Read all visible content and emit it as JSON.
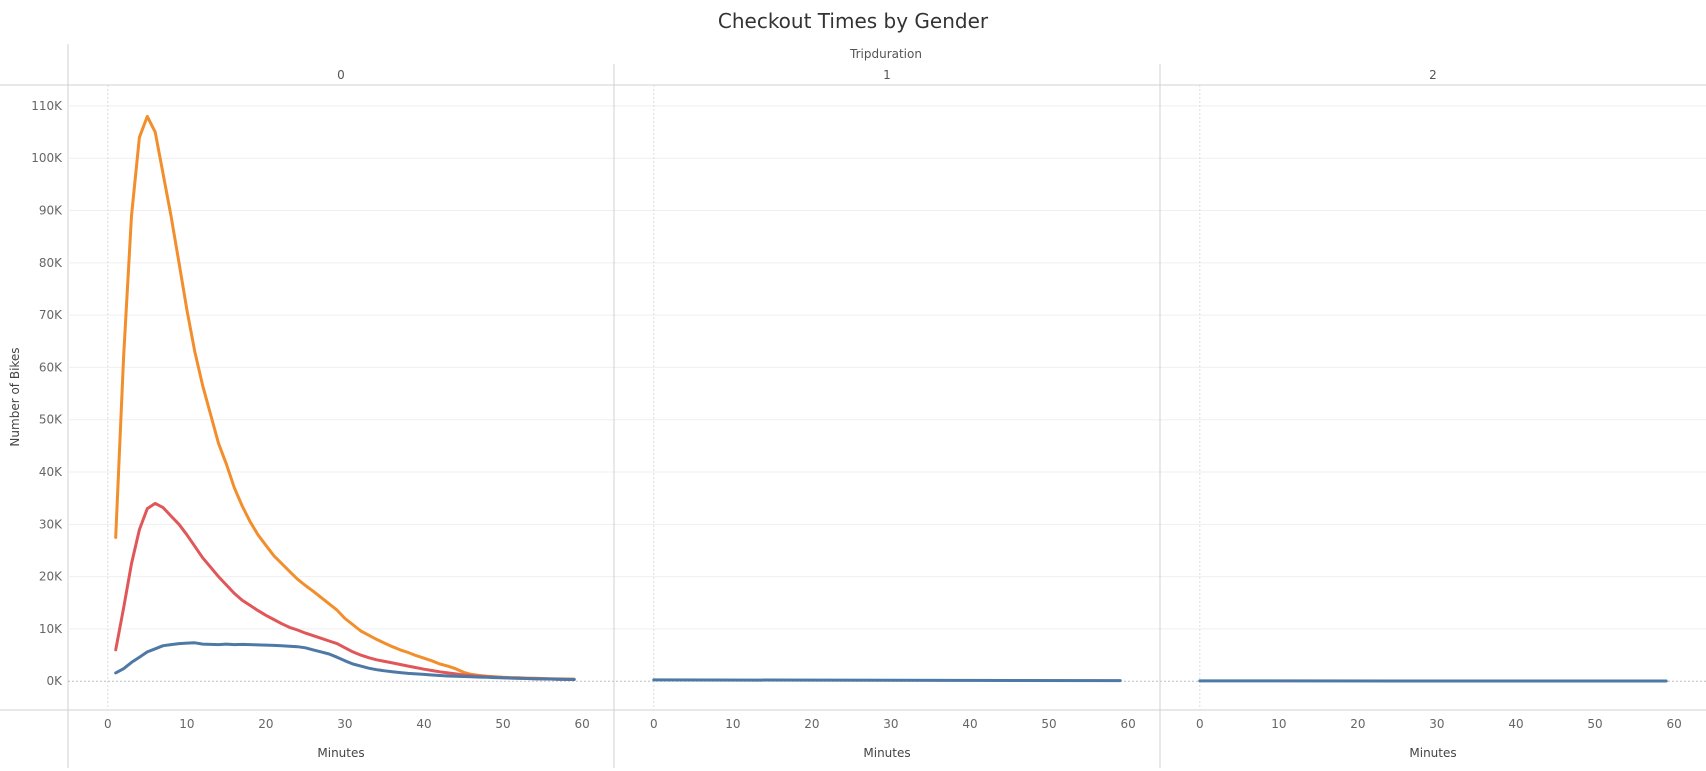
{
  "chart_data": {
    "type": "line",
    "title": "Checkout Times by Gender",
    "column_header": "Tripduration",
    "panels": [
      {
        "label": "0",
        "series": [
          {
            "color": "#f28e2b",
            "x": [
              1,
              2,
              3,
              4,
              5,
              6,
              7,
              8,
              9,
              10,
              11,
              12,
              13,
              14,
              15,
              16,
              17,
              18,
              19,
              20,
              21,
              22,
              23,
              24,
              25,
              26,
              27,
              28,
              29,
              30,
              31,
              32,
              33,
              34,
              35,
              36,
              37,
              38,
              39,
              40,
              41,
              42,
              43,
              44,
              45,
              46,
              47,
              48,
              49,
              50,
              51,
              52,
              53,
              54,
              55,
              56,
              57,
              58,
              59
            ],
            "values": [
              27500,
              62000,
              89000,
              104000,
              108000,
              105000,
              97000,
              89000,
              80000,
              71000,
              63000,
              56500,
              51000,
              45500,
              41500,
              37000,
              33500,
              30500,
              28000,
              26000,
              24000,
              22500,
              21000,
              19500,
              18300,
              17200,
              16000,
              14800,
              13600,
              12000,
              10800,
              9600,
              8800,
              8000,
              7300,
              6600,
              6000,
              5500,
              4900,
              4400,
              3900,
              3300,
              2900,
              2400,
              1700,
              1300,
              1100,
              950,
              850,
              750,
              700,
              650,
              600,
              560,
              520,
              480,
              450,
              420,
              400
            ]
          },
          {
            "color": "#e15759",
            "x": [
              1,
              2,
              3,
              4,
              5,
              6,
              7,
              8,
              9,
              10,
              11,
              12,
              13,
              14,
              15,
              16,
              17,
              18,
              19,
              20,
              21,
              22,
              23,
              24,
              25,
              26,
              27,
              28,
              29,
              30,
              31,
              32,
              33,
              34,
              35,
              36,
              37,
              38,
              39,
              40,
              41,
              42,
              43,
              44,
              45,
              46,
              47,
              48,
              49,
              50,
              51,
              52,
              53,
              54,
              55,
              56,
              57,
              58,
              59
            ],
            "values": [
              6000,
              14000,
              22500,
              29000,
              33000,
              34000,
              33200,
              31600,
              30000,
              28000,
              25800,
              23600,
              21800,
              20000,
              18400,
              16800,
              15500,
              14500,
              13500,
              12600,
              11800,
              11000,
              10300,
              9800,
              9200,
              8700,
              8200,
              7700,
              7200,
              6400,
              5600,
              5000,
              4500,
              4100,
              3800,
              3500,
              3200,
              2900,
              2600,
              2300,
              2050,
              1800,
              1600,
              1400,
              1200,
              1050,
              950,
              850,
              750,
              680,
              620,
              560,
              520,
              480,
              450,
              420,
              390,
              360,
              340
            ]
          },
          {
            "color": "#4e79a7",
            "x": [
              1,
              2,
              3,
              4,
              5,
              6,
              7,
              8,
              9,
              10,
              11,
              12,
              13,
              14,
              15,
              16,
              17,
              18,
              19,
              20,
              21,
              22,
              23,
              24,
              25,
              26,
              27,
              28,
              29,
              30,
              31,
              32,
              33,
              34,
              35,
              36,
              37,
              38,
              39,
              40,
              41,
              42,
              43,
              44,
              45,
              46,
              47,
              48,
              49,
              50,
              51,
              52,
              53,
              54,
              55,
              56,
              57,
              58,
              59
            ],
            "values": [
              1600,
              2400,
              3600,
              4600,
              5600,
              6200,
              6800,
              7000,
              7200,
              7300,
              7350,
              7100,
              7050,
              7000,
              7100,
              7000,
              7050,
              7000,
              6950,
              6900,
              6850,
              6800,
              6700,
              6600,
              6400,
              6000,
              5600,
              5200,
              4600,
              3900,
              3300,
              2900,
              2500,
              2200,
              2000,
              1800,
              1650,
              1500,
              1400,
              1300,
              1200,
              1100,
              1000,
              950,
              900,
              850,
              800,
              750,
              700,
              650,
              600,
              560,
              520,
              480,
              450,
              420,
              390,
              360,
              340
            ]
          }
        ]
      },
      {
        "label": "1",
        "series": [
          {
            "color": "#4e79a7",
            "x": [
              0,
              59
            ],
            "values": [
              260,
              120
            ]
          }
        ]
      },
      {
        "label": "2",
        "series": [
          {
            "color": "#4e79a7",
            "x": [
              0,
              59
            ],
            "values": [
              60,
              40
            ]
          }
        ]
      }
    ],
    "xlabel": "Minutes",
    "ylabel": "Number of Bikes",
    "x_ticks": [
      0,
      10,
      20,
      30,
      40,
      50,
      60
    ],
    "x_tick_labels": [
      "0",
      "10",
      "20",
      "30",
      "40",
      "50",
      "60"
    ],
    "xlim": [
      -2,
      61
    ],
    "y_ticks": [
      0,
      10000,
      20000,
      30000,
      40000,
      50000,
      60000,
      70000,
      80000,
      90000,
      100000,
      110000
    ],
    "y_tick_labels": [
      "0K",
      "10K",
      "20K",
      "30K",
      "40K",
      "50K",
      "60K",
      "70K",
      "80K",
      "90K",
      "100K",
      "110K"
    ],
    "ylim": [
      -5500,
      114000
    ],
    "grid": true,
    "legend": "none"
  }
}
